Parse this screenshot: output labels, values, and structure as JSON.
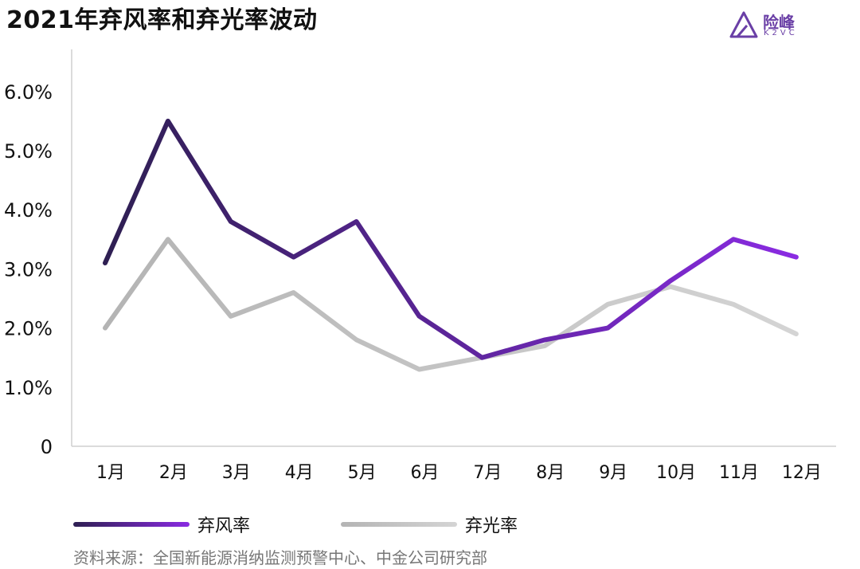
{
  "title": "2021年弃风率和弃光率波动",
  "logo": {
    "name": "险峰",
    "sub": "K2VC"
  },
  "source": "资料来源：全国新能源消纳监测预警中心、中金公司研究部",
  "colors": {
    "wind_start": "#2e1f52",
    "wind_end": "#8a2be2",
    "solar_start": "#b4b4b4",
    "solar_end": "#d4d4d4",
    "logo": "#6a3fa6"
  },
  "chart_data": {
    "type": "line",
    "title": "2021年弃风率和弃光率波动",
    "xlabel": "",
    "ylabel": "",
    "categories": [
      "1月",
      "2月",
      "3月",
      "4月",
      "5月",
      "6月",
      "7月",
      "8月",
      "9月",
      "10月",
      "11月",
      "12月"
    ],
    "yticks": [
      {
        "value": 0,
        "label": "0"
      },
      {
        "value": 1,
        "label": "1.0%"
      },
      {
        "value": 2,
        "label": "2.0%"
      },
      {
        "value": 3,
        "label": "3.0%"
      },
      {
        "value": 4,
        "label": "4.0%"
      },
      {
        "value": 5,
        "label": "5.0%"
      },
      {
        "value": 6,
        "label": "6.0%"
      }
    ],
    "ylim": [
      0,
      6
    ],
    "grid": false,
    "legend": "bottom",
    "series": [
      {
        "name": "弃风率",
        "values": [
          3.1,
          5.5,
          3.8,
          3.2,
          3.8,
          2.2,
          1.5,
          1.8,
          2.0,
          2.8,
          3.5,
          3.2
        ]
      },
      {
        "name": "弃光率",
        "values": [
          2.0,
          3.5,
          2.2,
          2.6,
          1.8,
          1.3,
          1.5,
          1.7,
          2.4,
          2.7,
          2.4,
          1.9
        ]
      }
    ]
  }
}
